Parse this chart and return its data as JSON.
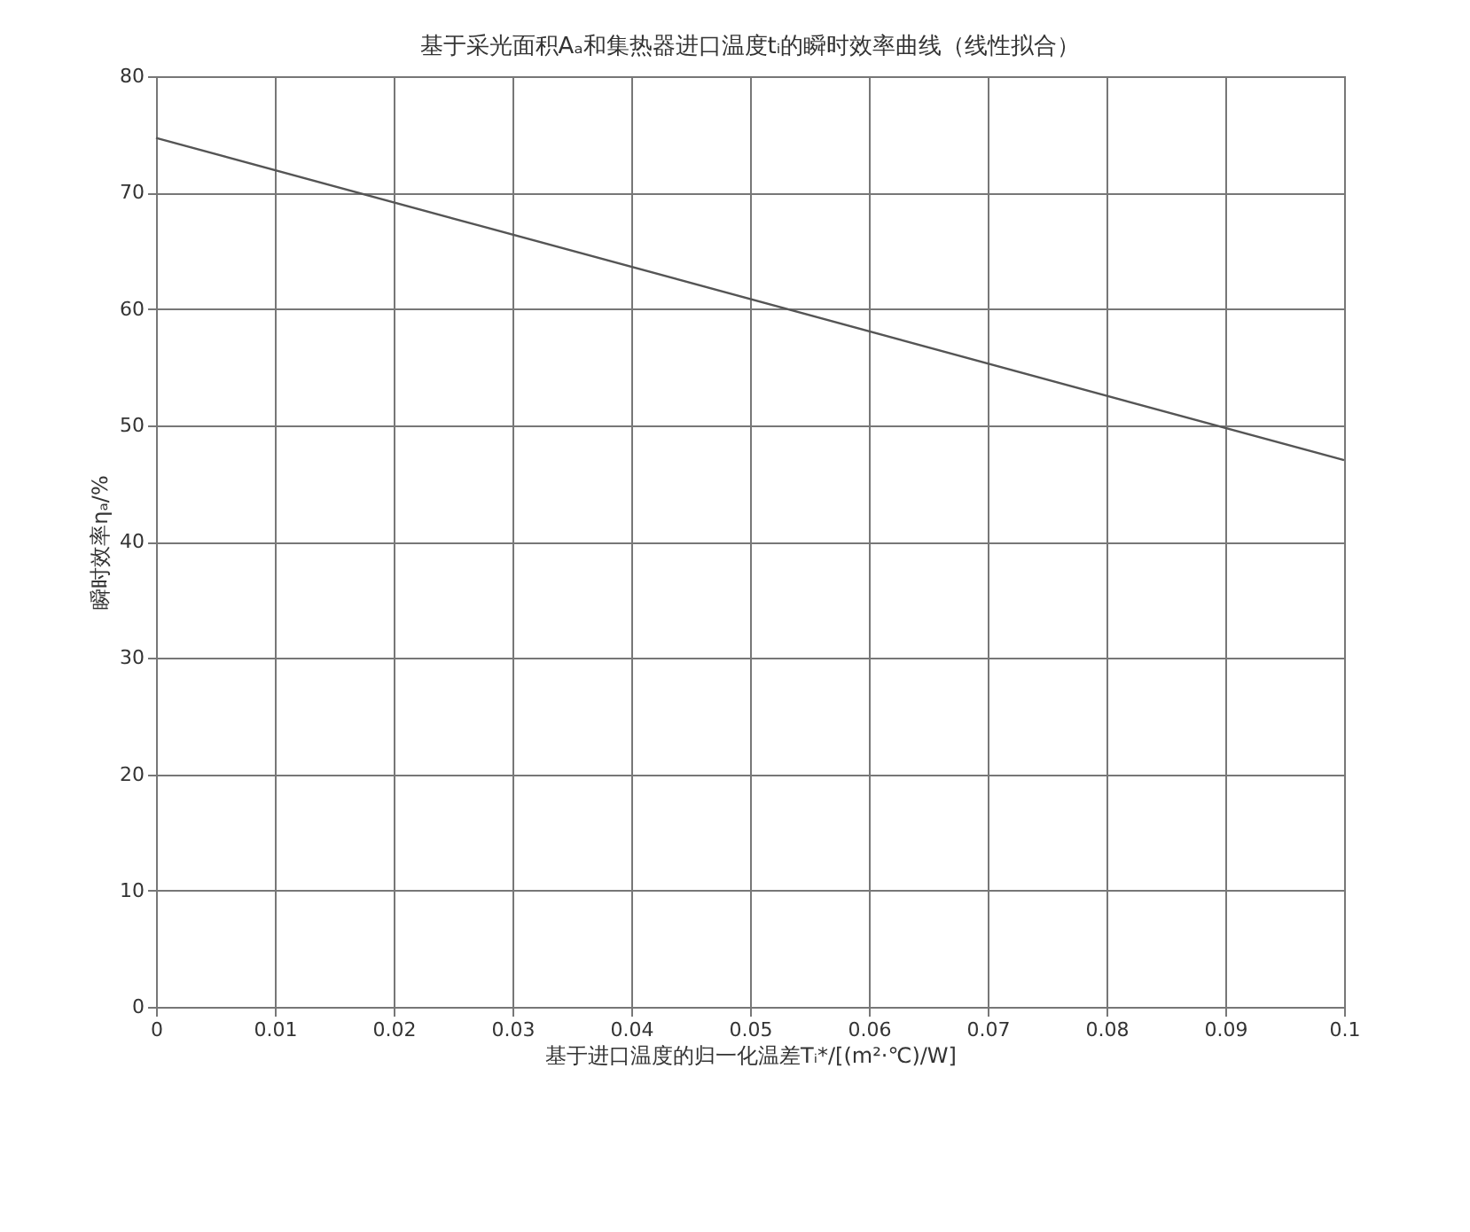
{
  "chart_data": {
    "type": "line",
    "title": "基于采光面积Aₐ和集热器进口温度tᵢ的瞬时效率曲线（线性拟合）",
    "xlabel": "基于进口温度的归一化温差Tᵢ*/[(m²·℃)/W]",
    "ylabel": "瞬时效率ηₐ/%",
    "x": [
      0,
      0.1
    ],
    "series": [
      {
        "color": "#555555",
        "values": [
          74.7,
          47.0
        ]
      }
    ],
    "xlim": [
      0,
      0.1
    ],
    "xticks": [
      0,
      0.01,
      0.02,
      0.03,
      0.04,
      0.05,
      0.06,
      0.07,
      0.08,
      0.09,
      0.1
    ],
    "ylim": [
      0,
      80
    ],
    "yticks": [
      0,
      10,
      20,
      30,
      40,
      50,
      60,
      70,
      80
    ],
    "grid": true,
    "marker": "none",
    "line_style": "solid"
  }
}
